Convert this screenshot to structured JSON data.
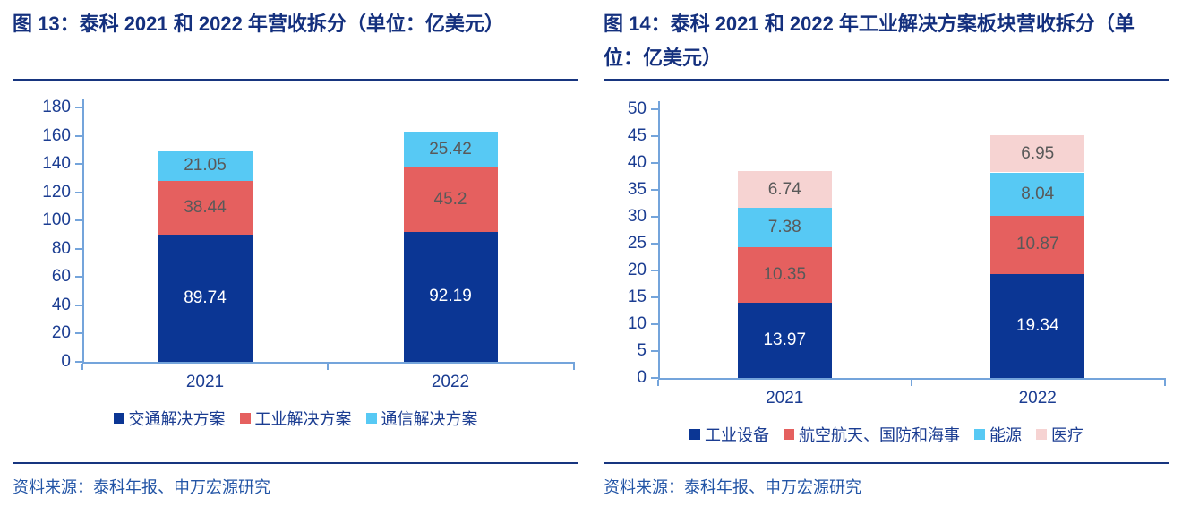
{
  "colors": {
    "title_navy": "#14307e",
    "rule_navy": "#17357f",
    "axis_blue": "#74a4db",
    "tick_label_navy": "#1b3d92",
    "source_blue": "#2355a6",
    "value_label_gray": "#595959",
    "value_label_white": "#ffffff",
    "series_navy": "#0b3694",
    "series_red": "#e5605f",
    "series_light_blue": "#57c9f4",
    "series_pink": "#f6d3d2"
  },
  "chart_data": [
    {
      "type": "bar",
      "stacked": true,
      "title": "图 13：泰科 2021 和 2022 年营收拆分（单位：亿美元）",
      "source_note": "资料来源：泰科年报、申万宏源研究",
      "categories": [
        "2021",
        "2022"
      ],
      "series": [
        {
          "name": "交通解决方案",
          "color": "#0b3694",
          "label_color": "#ffffff",
          "values": [
            89.74,
            92.19
          ]
        },
        {
          "name": "工业解决方案",
          "color": "#e5605f",
          "label_color": "#595959",
          "values": [
            38.44,
            45.2
          ]
        },
        {
          "name": "通信解决方案",
          "color": "#57c9f4",
          "label_color": "#595959",
          "values": [
            21.05,
            25.42
          ]
        }
      ],
      "ylim": [
        0,
        180
      ],
      "ytick_step": 20,
      "grid": false,
      "value_labels": true,
      "legend_position": "bottom"
    },
    {
      "type": "bar",
      "stacked": true,
      "title": "图 14：泰科 2021 和 2022 年工业解决方案板块营收拆分（单位：亿美元）",
      "source_note": "资料来源：泰科年报、申万宏源研究",
      "categories": [
        "2021",
        "2022"
      ],
      "series": [
        {
          "name": "工业设备",
          "color": "#0b3694",
          "label_color": "#ffffff",
          "values": [
            13.97,
            19.34
          ]
        },
        {
          "name": "航空航天、国防和海事",
          "color": "#e5605f",
          "label_color": "#595959",
          "values": [
            10.35,
            10.87
          ]
        },
        {
          "name": "能源",
          "color": "#57c9f4",
          "label_color": "#595959",
          "values": [
            7.38,
            8.04
          ]
        },
        {
          "name": "医疗",
          "color": "#f6d3d2",
          "label_color": "#595959",
          "values": [
            6.74,
            6.95
          ]
        }
      ],
      "ylim": [
        0,
        50
      ],
      "ytick_step": 5,
      "grid": false,
      "value_labels": true,
      "legend_position": "bottom"
    }
  ]
}
